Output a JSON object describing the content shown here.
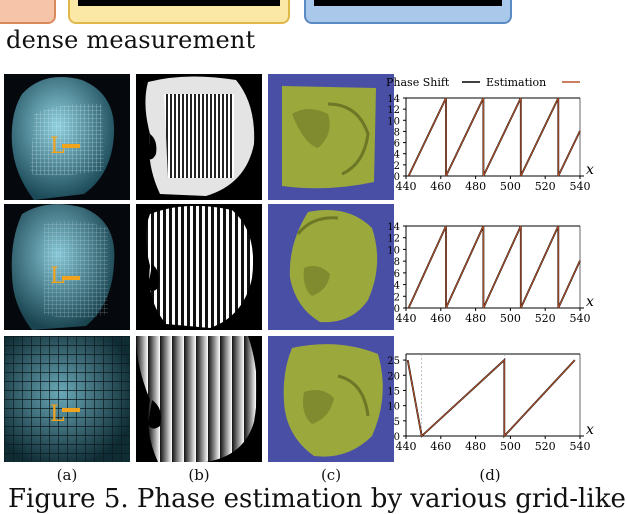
{
  "section_heading": "dense measurement",
  "column_labels": [
    "(a)",
    "(b)",
    "(c)",
    "(d)"
  ],
  "caption": "Figure 5. Phase estimation by various grid-like",
  "marker_label": "L",
  "colors": {
    "left_box_fill": "#f6c4a8",
    "left_box_border": "#d98a5c",
    "mid_box_fill": "#fbe7a6",
    "mid_box_border": "#e0b84a",
    "right_box_fill": "#a9c8ea",
    "right_box_border": "#5b89c4",
    "face_blue": "#5aa3b5",
    "mesh_green": "#9aa83c",
    "mesh_bg": "#4a4fa6",
    "phase_line": "#000000",
    "estimation_line": "#b8542c",
    "marker": "#f2a31c"
  },
  "legend": {
    "phase_shift": "Phase Shift",
    "estimation": "Estimation"
  },
  "chart_data": [
    {
      "type": "line",
      "xlabel": "x",
      "ylabel": "",
      "xlim": [
        440,
        540
      ],
      "ylim": [
        0,
        14
      ],
      "xticks": [
        "440",
        "460",
        "480",
        "500",
        "520",
        "540"
      ],
      "yticks": [
        "0",
        "2",
        "4",
        "6",
        "8",
        "10",
        "12",
        "14"
      ],
      "series": [
        {
          "name": "Phase Shift",
          "x": [
            441.5,
            463,
            463,
            484.5,
            484.5,
            506,
            506,
            527.5,
            527.5,
            540
          ],
          "y": [
            0,
            14,
            0,
            14,
            0,
            14,
            0,
            14,
            0,
            8.1
          ]
        },
        {
          "name": "Estimation",
          "x": [
            441.5,
            463,
            463,
            484.5,
            484.5,
            506,
            506,
            527.5,
            527.5,
            540
          ],
          "y": [
            0,
            14,
            0,
            14,
            0,
            14,
            0,
            14,
            0,
            8.1
          ]
        }
      ]
    },
    {
      "type": "line",
      "xlabel": "x",
      "ylabel": "",
      "xlim": [
        440,
        540
      ],
      "ylim": [
        0,
        14
      ],
      "xticks": [
        "440",
        "460",
        "480",
        "500",
        "520",
        "540"
      ],
      "yticks": [
        "0",
        "2",
        "4",
        "6",
        "8",
        "10",
        "12",
        "14"
      ],
      "series": [
        {
          "name": "Phase Shift",
          "x": [
            441.5,
            463,
            463,
            484.5,
            484.5,
            506,
            506,
            527.5,
            527.5,
            540
          ],
          "y": [
            0,
            14,
            0,
            14,
            0,
            14,
            0,
            14,
            0,
            8.1
          ]
        },
        {
          "name": "Estimation",
          "x": [
            441.5,
            463,
            463,
            484.5,
            484.5,
            506,
            506,
            527.5,
            527.5,
            540
          ],
          "y": [
            0,
            14,
            0,
            14,
            0,
            14,
            0,
            14,
            0,
            8.1
          ]
        }
      ]
    },
    {
      "type": "line",
      "xlabel": "x",
      "ylabel": "",
      "xlim": [
        440,
        540
      ],
      "ylim": [
        0,
        27
      ],
      "xticks": [
        "440",
        "460",
        "480",
        "500",
        "520",
        "540"
      ],
      "yticks": [
        "0",
        "5",
        "10",
        "15",
        "20",
        "25"
      ],
      "series": [
        {
          "name": "Phase Shift",
          "x": [
            441,
            449,
            449,
            496.5,
            496.5,
            537
          ],
          "y": [
            25,
            0,
            0,
            25,
            0,
            25
          ]
        },
        {
          "name": "Estimation",
          "x": [
            441,
            449,
            449,
            496.5,
            496.5,
            537
          ],
          "y": [
            25,
            0,
            0,
            25,
            0,
            25
          ]
        }
      ]
    }
  ]
}
